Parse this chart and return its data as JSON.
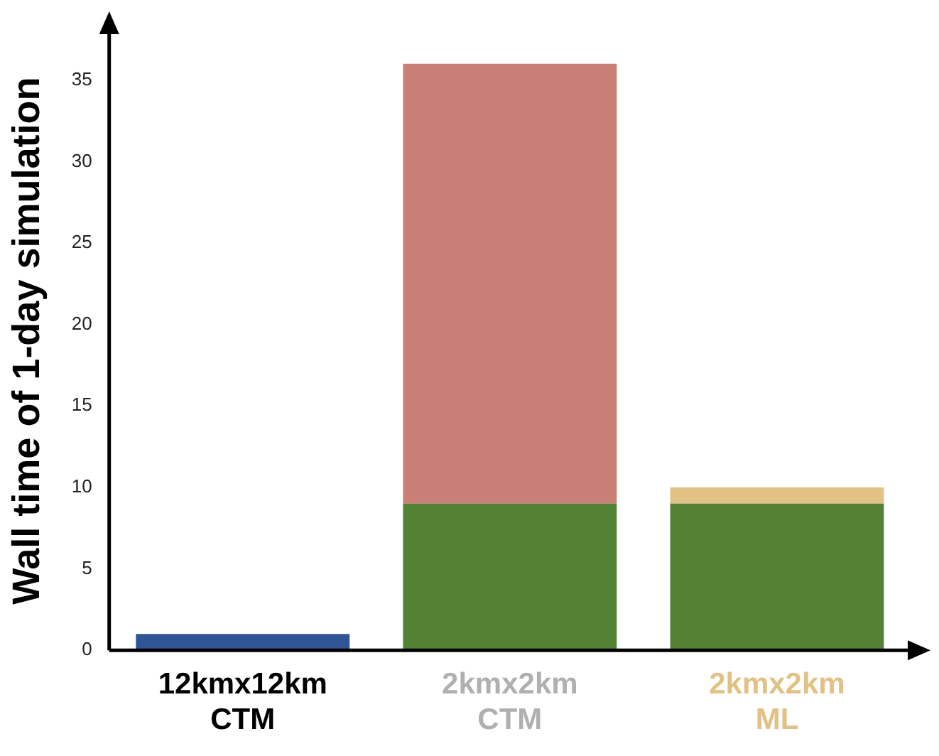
{
  "chart_data": {
    "type": "bar",
    "stacked": true,
    "ylabel": "Wall time of 1-day simulation",
    "categories": [
      "12kmx12km CTM",
      "2kmx2km CTM",
      "2kmx2km ML"
    ],
    "series": [
      {
        "color": "#2f5597",
        "values": [
          1,
          null,
          null
        ]
      },
      {
        "color": "#548235",
        "values": [
          null,
          9,
          9
        ]
      },
      {
        "color": "#c97f76",
        "values": [
          null,
          27,
          null
        ]
      },
      {
        "color": "#e2c185",
        "values": [
          null,
          null,
          1
        ]
      }
    ],
    "ylim": [
      0,
      38
    ],
    "yticks": [
      0,
      5,
      10,
      15,
      20,
      25,
      30,
      35
    ],
    "grid": false,
    "legend": false
  }
}
